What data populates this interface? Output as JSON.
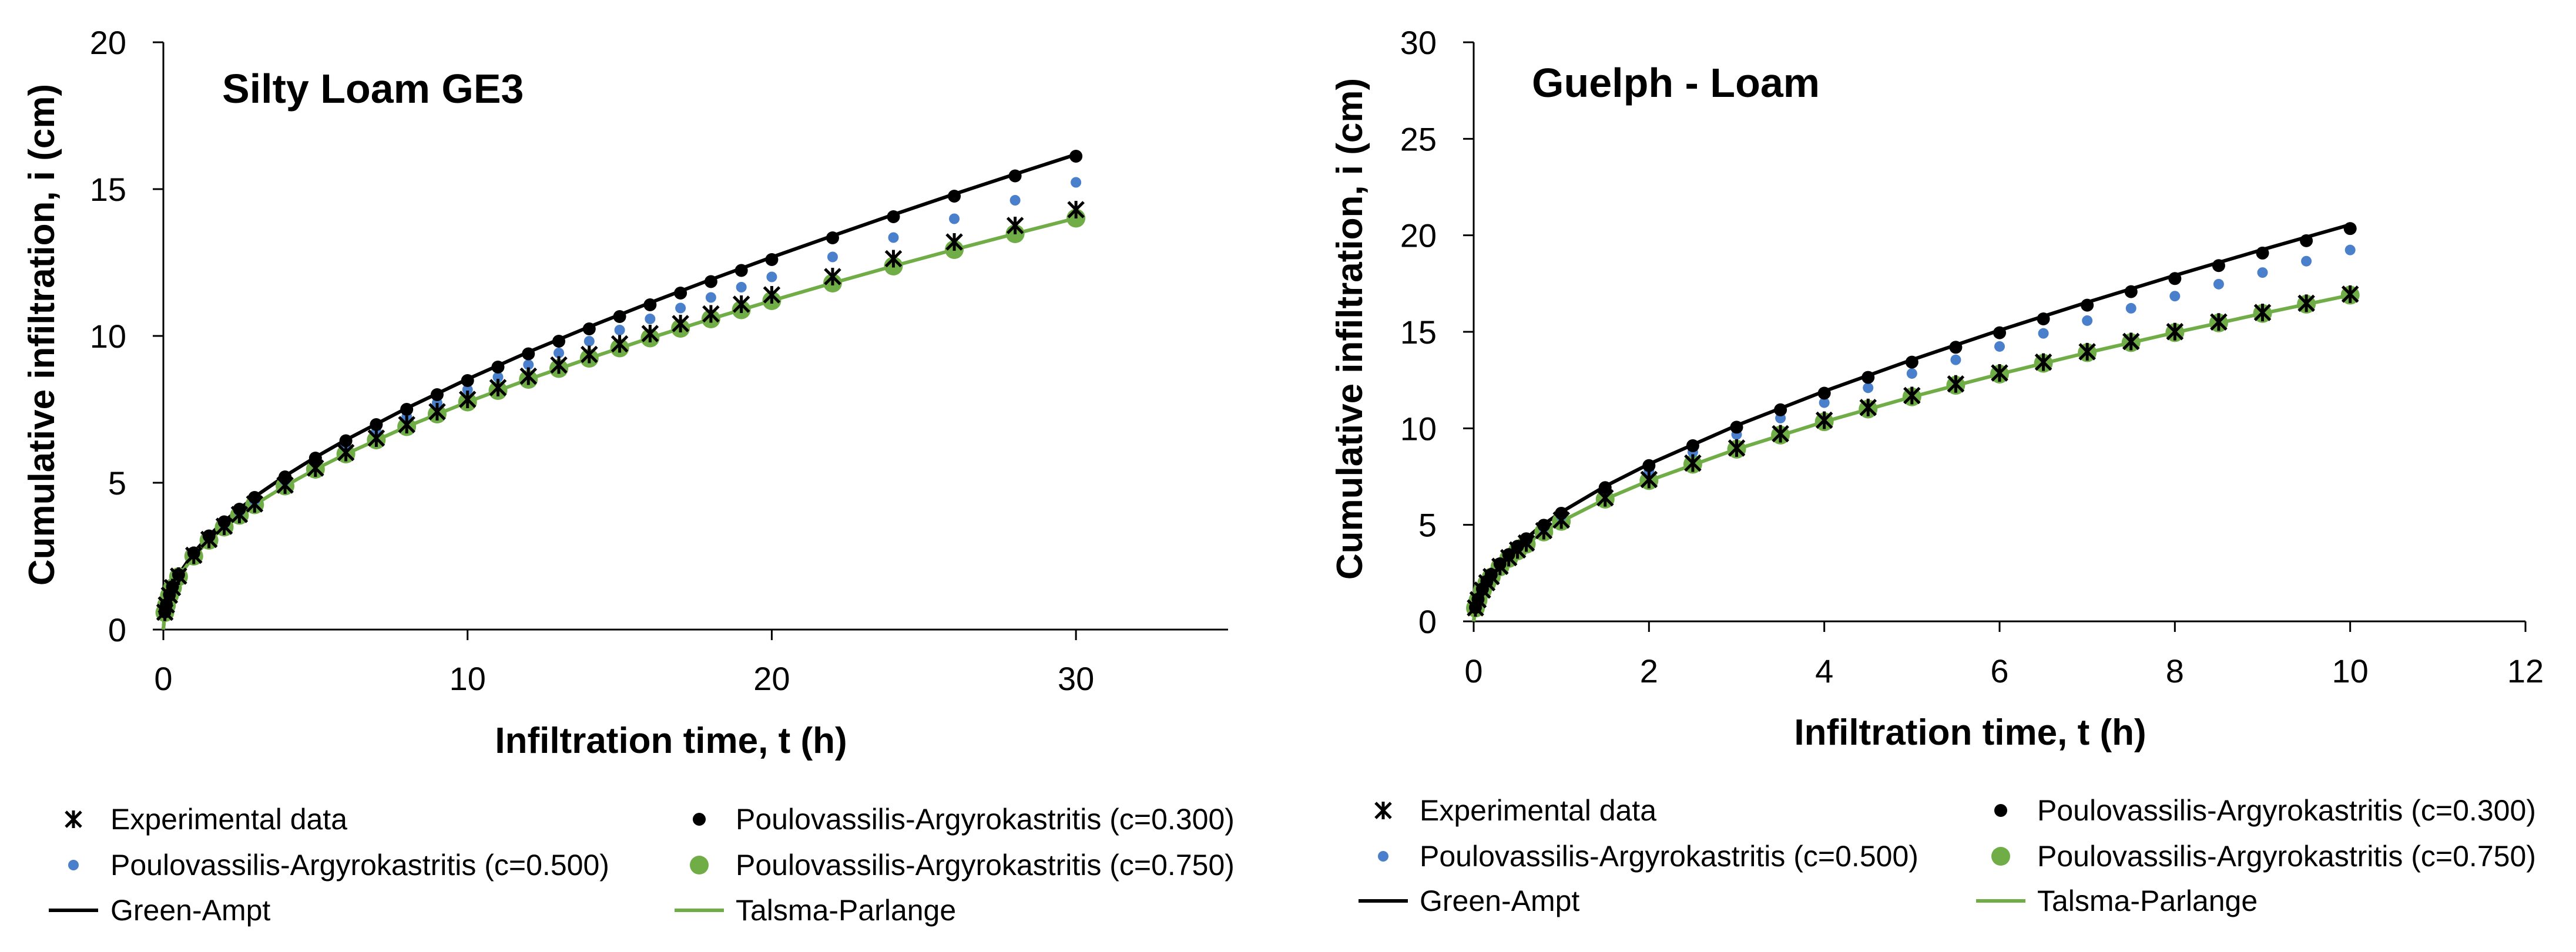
{
  "colors": {
    "experimental": "#000000",
    "pa_c0300": "#000000",
    "pa_c0500": "#4a7fcc",
    "pa_c0750": "#70ad47",
    "green_ampt": "#000000",
    "talsma_parlange": "#70ad47",
    "axis": "#000000"
  },
  "legend_labels": {
    "experimental": "Experimental data",
    "pa_c0300": "Poulovassilis-Argyrokastritis (c=0.300)",
    "pa_c0500": "Poulovassilis-Argyrokastritis (c=0.500)",
    "pa_c0750": "Poulovassilis-Argyrokastritis (c=0.750)",
    "green_ampt": "Green-Ampt",
    "talsma_parlange": "Talsma-Parlange"
  },
  "chart_data": [
    {
      "type": "scatter",
      "title": "Silty Loam GE3",
      "xlabel": "Infiltration time, t (h)",
      "ylabel": "Cumulative infiltration, i (cm)",
      "xlim": [
        0,
        35
      ],
      "ylim": [
        0,
        20
      ],
      "xticks": [
        0,
        10,
        20,
        30
      ],
      "yticks": [
        0,
        5,
        10,
        15,
        20
      ],
      "tick_labels_x": [
        "0",
        "10",
        "20",
        "30"
      ],
      "tick_labels_y": [
        "0",
        "5",
        "10",
        "15",
        "20"
      ],
      "x": [
        0.05,
        0.1,
        0.2,
        0.3,
        0.5,
        1,
        1.5,
        2,
        2.5,
        3,
        4,
        5,
        6,
        7,
        8,
        9,
        10,
        11,
        12,
        13,
        14,
        15,
        16,
        17,
        18,
        19,
        20,
        22,
        24,
        26,
        28,
        30
      ],
      "series": [
        {
          "key": "experimental",
          "name": "Experimental data",
          "marker": "star",
          "values": [
            0.59,
            0.84,
            1.17,
            1.43,
            1.82,
            2.53,
            3.07,
            3.52,
            3.92,
            4.28,
            4.92,
            5.5,
            6.03,
            6.52,
            6.98,
            7.42,
            7.84,
            8.24,
            8.63,
            9.01,
            9.37,
            9.73,
            10.08,
            10.42,
            10.75,
            11.08,
            11.4,
            12.02,
            12.63,
            13.2,
            13.76,
            14.3
          ]
        },
        {
          "key": "pa_c0300",
          "name": "Poulovassilis-Argyrokastritis (c=0.300)",
          "marker": "dot",
          "values": [
            0.6,
            0.85,
            1.19,
            1.46,
            1.87,
            2.61,
            3.19,
            3.67,
            4.1,
            4.5,
            5.2,
            5.84,
            6.43,
            6.98,
            7.5,
            8.0,
            8.48,
            8.94,
            9.39,
            9.82,
            10.24,
            10.66,
            11.06,
            11.46,
            11.85,
            12.23,
            12.6,
            13.34,
            14.06,
            14.76,
            15.45,
            16.12
          ]
        },
        {
          "key": "pa_c0500",
          "name": "Poulovassilis-Argyrokastritis (c=0.500)",
          "marker": "dot-small",
          "values": [
            0.59,
            0.84,
            1.18,
            1.44,
            1.84,
            2.56,
            3.12,
            3.59,
            4.01,
            4.39,
            5.07,
            5.68,
            6.24,
            6.76,
            7.25,
            7.72,
            8.17,
            8.6,
            9.02,
            9.42,
            9.82,
            10.2,
            10.58,
            10.95,
            11.31,
            11.66,
            12.01,
            12.69,
            13.35,
            13.99,
            14.62,
            15.23
          ]
        },
        {
          "key": "pa_c0750",
          "name": "Poulovassilis-Argyrokastritis (c=0.750)",
          "marker": "dot-large",
          "values": [
            0.58,
            0.82,
            1.16,
            1.42,
            1.8,
            2.5,
            3.04,
            3.49,
            3.89,
            4.25,
            4.89,
            5.46,
            5.98,
            6.46,
            6.91,
            7.34,
            7.75,
            8.14,
            8.52,
            8.89,
            9.24,
            9.59,
            9.93,
            10.26,
            10.58,
            10.89,
            11.2,
            11.8,
            12.38,
            12.94,
            13.48,
            14.01
          ]
        }
      ],
      "lines": [
        {
          "key": "green_ampt",
          "name": "Green-Ampt",
          "x": [
            0,
            0.05,
            0.1,
            0.2,
            0.3,
            0.5,
            1,
            1.5,
            2,
            3,
            4,
            5,
            6,
            8,
            10,
            12,
            14,
            16,
            18,
            20,
            22,
            24,
            26,
            28,
            30
          ],
          "values": [
            0,
            0.6,
            0.85,
            1.19,
            1.46,
            1.87,
            2.62,
            3.2,
            3.69,
            4.52,
            5.23,
            5.87,
            6.46,
            7.54,
            8.53,
            9.45,
            10.31,
            11.13,
            11.92,
            12.68,
            13.41,
            14.13,
            14.83,
            15.51,
            16.18
          ]
        },
        {
          "key": "talsma_parlange",
          "name": "Talsma-Parlange",
          "x": [
            0,
            0.05,
            0.1,
            0.2,
            0.3,
            0.5,
            1,
            1.5,
            2,
            3,
            4,
            5,
            6,
            8,
            10,
            12,
            14,
            16,
            18,
            20,
            22,
            24,
            26,
            28,
            30
          ],
          "values": [
            0,
            0.58,
            0.82,
            1.16,
            1.42,
            1.8,
            2.5,
            3.04,
            3.49,
            4.25,
            4.89,
            5.46,
            5.98,
            6.91,
            7.75,
            8.52,
            9.24,
            9.93,
            10.58,
            11.2,
            11.8,
            12.38,
            12.94,
            13.48,
            14.01
          ]
        }
      ]
    },
    {
      "type": "scatter",
      "title": "Guelph - Loam",
      "xlabel": "Infiltration time, t (h)",
      "ylabel": "Cumulative infiltration, i (cm)",
      "xlim": [
        0,
        12
      ],
      "ylim": [
        0,
        30
      ],
      "xticks": [
        0,
        2,
        4,
        6,
        8,
        10,
        12
      ],
      "yticks": [
        0,
        5,
        10,
        15,
        20,
        25,
        30
      ],
      "tick_labels_x": [
        "0",
        "2",
        "4",
        "6",
        "8",
        "10",
        "12"
      ],
      "tick_labels_y": [
        "0",
        "5",
        "10",
        "15",
        "20",
        "25",
        "30"
      ],
      "x": [
        0.02,
        0.05,
        0.1,
        0.15,
        0.2,
        0.3,
        0.4,
        0.5,
        0.6,
        0.8,
        1,
        1.5,
        2,
        2.5,
        3,
        3.5,
        4,
        4.5,
        5,
        5.5,
        6,
        6.5,
        7,
        7.5,
        8,
        8.5,
        9,
        9.5,
        10
      ],
      "series": [
        {
          "key": "experimental",
          "name": "Experimental data",
          "marker": "star",
          "values": [
            0.7,
            1.12,
            1.62,
            2.0,
            2.32,
            2.85,
            3.3,
            3.7,
            4.06,
            4.7,
            5.25,
            6.4,
            7.35,
            8.2,
            8.98,
            9.72,
            10.42,
            11.08,
            11.7,
            12.3,
            12.87,
            13.43,
            13.97,
            14.5,
            15.01,
            15.51,
            16.0,
            16.48,
            16.95
          ]
        },
        {
          "key": "pa_c0300",
          "name": "Poulovassilis-Argyrokastritis (c=0.300)",
          "marker": "dot",
          "values": [
            0.72,
            1.15,
            1.68,
            2.08,
            2.42,
            2.98,
            3.46,
            3.89,
            4.28,
            4.98,
            5.6,
            6.93,
            8.07,
            9.1,
            10.06,
            10.96,
            11.82,
            12.64,
            13.43,
            14.2,
            14.95,
            15.67,
            16.38,
            17.08,
            17.76,
            18.43,
            19.08,
            19.72,
            20.35
          ]
        },
        {
          "key": "pa_c0500",
          "name": "Poulovassilis-Argyrokastritis (c=0.500)",
          "marker": "dot-small",
          "values": [
            0.71,
            1.13,
            1.65,
            2.04,
            2.37,
            2.92,
            3.38,
            3.8,
            4.18,
            4.85,
            5.45,
            6.72,
            7.8,
            8.77,
            9.68,
            10.53,
            11.33,
            12.1,
            12.84,
            13.55,
            14.24,
            14.92,
            15.58,
            16.22,
            16.85,
            17.47,
            18.07,
            18.66,
            19.24
          ]
        },
        {
          "key": "pa_c0750",
          "name": "Poulovassilis-Argyrokastritis (c=0.750)",
          "marker": "dot-large",
          "values": [
            0.69,
            1.1,
            1.6,
            1.98,
            2.29,
            2.82,
            3.26,
            3.65,
            4.0,
            4.63,
            5.18,
            6.33,
            7.29,
            8.14,
            8.92,
            9.65,
            10.34,
            11.0,
            11.63,
            12.23,
            12.81,
            13.37,
            13.92,
            14.44,
            14.96,
            15.46,
            15.95,
            16.43,
            16.9
          ]
        }
      ],
      "lines": [
        {
          "key": "green_ampt",
          "name": "Green-Ampt",
          "x": [
            0,
            0.02,
            0.05,
            0.1,
            0.2,
            0.3,
            0.5,
            0.75,
            1,
            1.5,
            2,
            3,
            4,
            5,
            6,
            7,
            8,
            9,
            10
          ],
          "values": [
            0,
            0.72,
            1.15,
            1.68,
            2.43,
            3.0,
            3.92,
            4.87,
            5.66,
            7.0,
            8.15,
            10.15,
            11.92,
            13.55,
            15.08,
            16.53,
            17.92,
            19.26,
            20.55
          ]
        },
        {
          "key": "talsma_parlange",
          "name": "Talsma-Parlange",
          "x": [
            0,
            0.02,
            0.05,
            0.1,
            0.2,
            0.3,
            0.5,
            0.75,
            1,
            1.5,
            2,
            3,
            4,
            5,
            6,
            7,
            8,
            9,
            10
          ],
          "values": [
            0,
            0.69,
            1.1,
            1.6,
            2.29,
            2.82,
            3.65,
            4.5,
            5.18,
            6.33,
            7.29,
            8.92,
            10.34,
            11.63,
            12.81,
            13.92,
            14.96,
            15.95,
            16.9
          ]
        }
      ]
    }
  ]
}
